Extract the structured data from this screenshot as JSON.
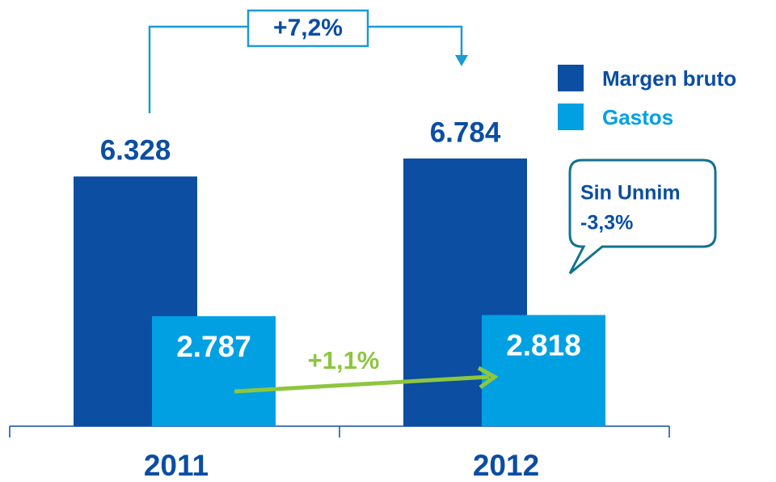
{
  "chart_data": {
    "type": "bar",
    "categories": [
      "2011",
      "2012"
    ],
    "series": [
      {
        "name": "Margen bruto",
        "color": "#0b4ea2",
        "values": [
          6328,
          6784
        ],
        "value_labels": [
          "6.328",
          "6.784"
        ]
      },
      {
        "name": "Gastos",
        "color": "#00a0e3",
        "values": [
          2787,
          2818
        ],
        "value_labels": [
          "2.787",
          "2.818"
        ]
      }
    ],
    "annotations": [
      "+7,2%",
      "+1,1%",
      "Sin Unnim",
      "-3,3%"
    ]
  }
}
